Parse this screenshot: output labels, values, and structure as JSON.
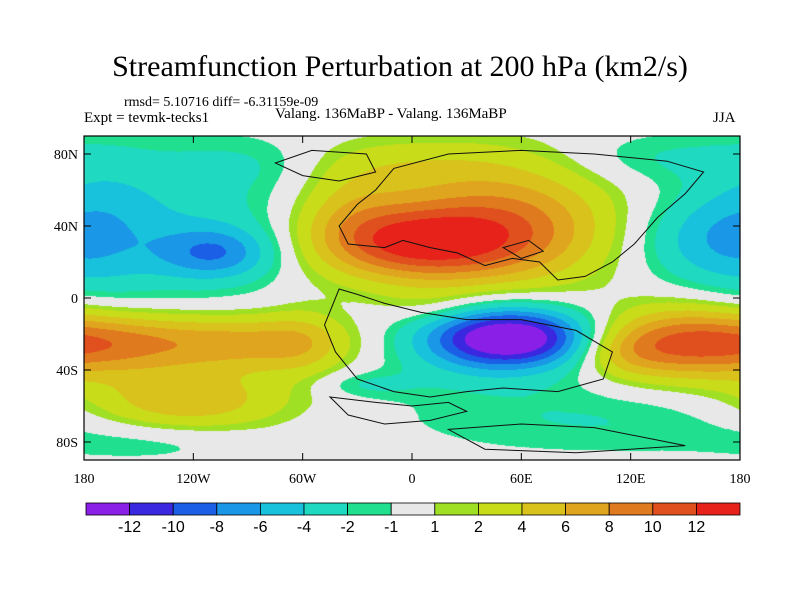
{
  "chart_data": {
    "type": "heatmap",
    "title": "Streamfunction Perturbation at 200 hPa (km2/s)",
    "stats_text": "rmsd= 5.10716 diff= -6.31159e-09",
    "experiment_text": "Expt = tevmk-tecks1",
    "comparison_text": "Valang. 136MaBP - Valang. 136MaBP",
    "season": "JJA",
    "xlim": [
      -180,
      180
    ],
    "ylim": [
      -90,
      90
    ],
    "x_ticks": [
      {
        "value": -180,
        "label": "180"
      },
      {
        "value": -120,
        "label": "120W"
      },
      {
        "value": -60,
        "label": "60W"
      },
      {
        "value": 0,
        "label": "0"
      },
      {
        "value": 60,
        "label": "60E"
      },
      {
        "value": 120,
        "label": "120E"
      },
      {
        "value": 180,
        "label": "180"
      }
    ],
    "y_ticks": [
      {
        "value": 80,
        "label": "80N"
      },
      {
        "value": 40,
        "label": "40N"
      },
      {
        "value": 0,
        "label": "0"
      },
      {
        "value": -40,
        "label": "40S"
      },
      {
        "value": -80,
        "label": "80S"
      }
    ],
    "colorbar": {
      "colors": [
        "#8a1fe8",
        "#3a28e0",
        "#1a5fe6",
        "#1a97e6",
        "#18c2dc",
        "#1fd9c0",
        "#20e08f",
        "#e8e8e8",
        "#9fe024",
        "#c8dc1a",
        "#d9c21c",
        "#e0a51e",
        "#e07a1e",
        "#e0501e",
        "#e6221a"
      ],
      "labels": [
        {
          "after_index": 0,
          "label": "-12"
        },
        {
          "after_index": 1,
          "label": "-10"
        },
        {
          "after_index": 2,
          "label": "-8"
        },
        {
          "after_index": 3,
          "label": "-6"
        },
        {
          "after_index": 4,
          "label": "-4"
        },
        {
          "after_index": 5,
          "label": "-2"
        },
        {
          "after_index": 6,
          "label": "-1"
        },
        {
          "after_index": 7,
          "label": "1"
        },
        {
          "after_index": 8,
          "label": "2"
        },
        {
          "after_index": 9,
          "label": "4"
        },
        {
          "after_index": 10,
          "label": "6"
        },
        {
          "after_index": 11,
          "label": "8"
        },
        {
          "after_index": 12,
          "label": "10"
        },
        {
          "after_index": 13,
          "label": "12"
        }
      ]
    },
    "anomalies": [
      {
        "lon": 0,
        "lat": 30,
        "amp": 9,
        "rlon": 38,
        "rlat": 14
      },
      {
        "lon": 30,
        "lat": 40,
        "amp": 6,
        "rlon": 45,
        "rlat": 24
      },
      {
        "lon": 65,
        "lat": 40,
        "amp": 4,
        "rlon": 35,
        "rlat": 22
      },
      {
        "lon": -35,
        "lat": 50,
        "amp": 3,
        "rlon": 22,
        "rlat": 18
      },
      {
        "lon": -5,
        "lat": 75,
        "amp": 2,
        "rlon": 45,
        "rlat": 10
      },
      {
        "lon": 55,
        "lat": -22,
        "amp": -12.5,
        "rlon": 30,
        "rlat": 11
      },
      {
        "lon": 40,
        "lat": -25,
        "amp": -4,
        "rlon": 40,
        "rlat": 17
      },
      {
        "lon": -108,
        "lat": 25,
        "amp": -6,
        "rlon": 22,
        "rlat": 10
      },
      {
        "lon": -120,
        "lat": 40,
        "amp": -3,
        "rlon": 45,
        "rlat": 30
      },
      {
        "lon": -170,
        "lat": 40,
        "amp": -3,
        "rlon": 25,
        "rlat": 30
      },
      {
        "lon": 160,
        "lat": 32,
        "amp": -4,
        "rlon": 28,
        "rlat": 18
      },
      {
        "lon": 135,
        "lat": 78,
        "amp": -2,
        "rlon": 35,
        "rlat": 10
      },
      {
        "lon": -85,
        "lat": 75,
        "amp": -1.5,
        "rlon": 35,
        "rlat": 10
      },
      {
        "lon": -95,
        "lat": -25,
        "amp": 7,
        "rlon": 42,
        "rlat": 11
      },
      {
        "lon": -160,
        "lat": -25,
        "amp": 5,
        "rlon": 28,
        "rlat": 12
      },
      {
        "lon": -125,
        "lat": -57,
        "amp": 6,
        "rlon": 38,
        "rlat": 12
      },
      {
        "lon": -60,
        "lat": -25,
        "amp": 2,
        "rlon": 15,
        "rlat": 15
      },
      {
        "lon": 150,
        "lat": -25,
        "amp": 10,
        "rlon": 32,
        "rlat": 14
      },
      {
        "lon": 115,
        "lat": -30,
        "amp": 3,
        "rlon": 18,
        "rlat": 10
      },
      {
        "lon": 100,
        "lat": -68,
        "amp": -2,
        "rlon": 75,
        "rlat": 14
      },
      {
        "lon": -140,
        "lat": -80,
        "amp": -1.5,
        "rlon": 40,
        "rlat": 8
      },
      {
        "lon": -25,
        "lat": -48,
        "amp": -2,
        "rlon": 20,
        "rlat": 5
      },
      {
        "lon": 10,
        "lat": -5,
        "amp": 1.5,
        "rlon": 20,
        "rlat": 8
      }
    ]
  }
}
